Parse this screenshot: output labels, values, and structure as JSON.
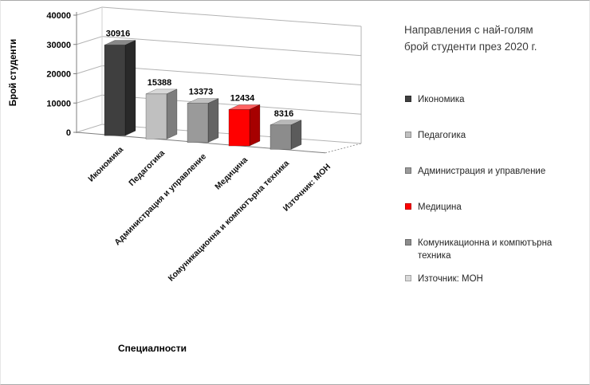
{
  "chart_data": {
    "type": "bar",
    "style": "3d-column",
    "title": "Направления с най-голям брой студенти през 2020 г.",
    "title_lines": [
      "Направления с най-голям",
      "брой студенти през 2020 г."
    ],
    "xlabel": "Специалности",
    "ylabel": "Брой студенти",
    "categories": [
      "Икономика",
      "Педагогика",
      "Администрация и управление",
      "Медицина",
      "Комуникационна и компютърна техника",
      "Източник: МОН"
    ],
    "values": [
      30916,
      15388,
      13373,
      12434,
      8316,
      null
    ],
    "data_labels": [
      "30916",
      "15388",
      "13373",
      "12434",
      "8316"
    ],
    "colors": [
      "#3f3f3f",
      "#c0c0c0",
      "#9a9a9a",
      "#ff0000",
      "#8c8c8c",
      "#d9d9d9"
    ],
    "ylim": [
      0,
      40000
    ],
    "yticks": [
      0,
      10000,
      20000,
      30000,
      40000
    ],
    "grid": true,
    "legend": {
      "position": "right",
      "items": [
        {
          "label": "Икономика",
          "color": "#3f3f3f"
        },
        {
          "label": "Педагогика",
          "color": "#c0c0c0"
        },
        {
          "label": "Администрация и управление",
          "color": "#9a9a9a"
        },
        {
          "label": "Медицина",
          "color": "#ff0000"
        },
        {
          "label": "Комуникационна и компютърна техника",
          "color": "#8c8c8c"
        },
        {
          "label": "Източник: МОН",
          "color": "#d9d9d9"
        }
      ]
    }
  }
}
